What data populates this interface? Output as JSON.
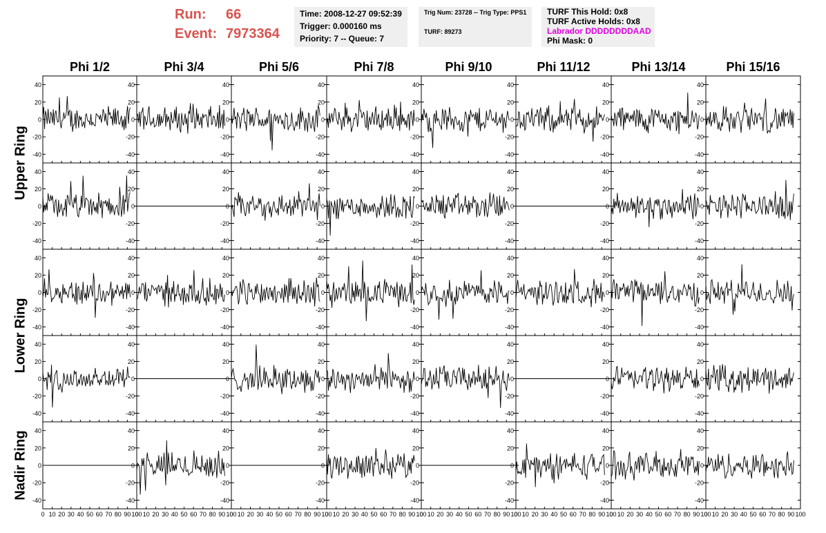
{
  "header": {
    "run_label": "Run:",
    "run_value": "66",
    "event_label": "Event:",
    "event_value": "7973364",
    "time": "Time: 2008-12-27 09:52:39",
    "trigger": "Trigger: 0.000160 ms",
    "priority": "Priority: 7 -- Queue: 7",
    "trig_num": "Trig Num: 23728 -- Trig Type: PPS1",
    "turf": "TURF: 89273",
    "turf_this_hold": "TURF This Hold: 0x8",
    "turf_active_holds": "TURF Active Holds: 0x8",
    "labrador": "Labrador DDDDDDDDAAD",
    "phi_mask": "Phi Mask: 0",
    "colors": {
      "run_red": "#d9534f",
      "labrador_magenta": "#e000e0",
      "panel_gray": "#efefef"
    }
  },
  "chart_data": {
    "type": "line",
    "columns": [
      "Phi 1/2",
      "Phi 3/4",
      "Phi 5/6",
      "Phi 7/8",
      "Phi 9/10",
      "Phi 11/12",
      "Phi 13/14",
      "Phi 15/16"
    ],
    "rows": [
      "Upper Ring",
      "Lower Ring",
      "Nadir Ring"
    ],
    "xlim": [
      0,
      100
    ],
    "ylim": [
      -50,
      50
    ],
    "x_ticks": [
      0,
      10,
      20,
      30,
      40,
      50,
      60,
      70,
      80,
      90,
      100
    ],
    "y_ticks": [
      -40,
      -20,
      0,
      20,
      40
    ],
    "sample_count": 100,
    "flat_panels": [
      [
        1,
        1
      ],
      [
        1,
        5
      ],
      [
        3,
        1
      ],
      [
        3,
        5
      ],
      [
        4,
        0
      ],
      [
        4,
        2
      ],
      [
        4,
        4
      ]
    ],
    "noise_amplitude": 12,
    "line_color": "#000000"
  }
}
